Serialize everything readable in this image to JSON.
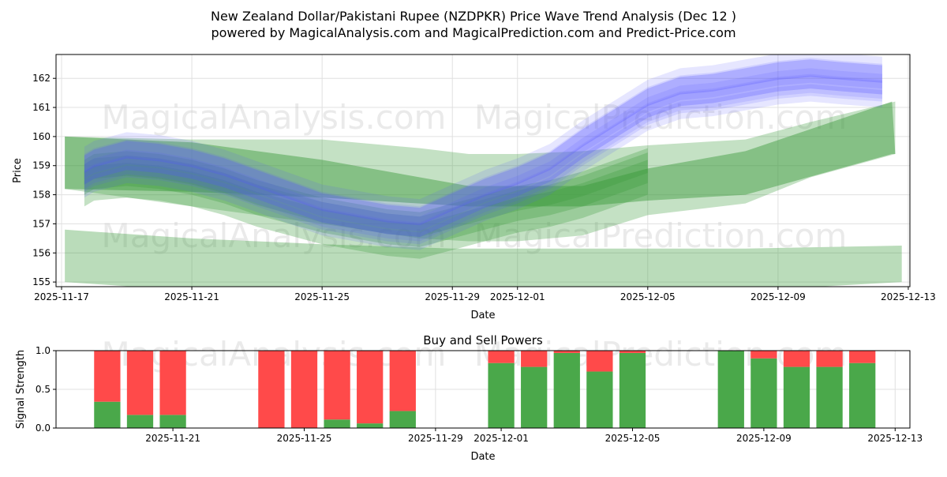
{
  "title_line1": "New Zealand Dollar/Pakistani Rupee (NZDPKR) Price Wave Trend Analysis (Dec 12 )",
  "title_line2": "powered by MagicalAnalysis.com and MagicalPrediction.com and Predict-Price.com",
  "watermarks": [
    "MagicalAnalysis.com",
    "MagicalPrediction.com"
  ],
  "chart_data": [
    {
      "type": "area",
      "title": "",
      "xlabel": "Date",
      "ylabel": "Price",
      "x_origin_date": "2025-11-17",
      "xlim_days": [
        -0.17,
        26.05
      ],
      "ylim": [
        154.84,
        162.82
      ],
      "grid": true,
      "yticks": [
        155,
        156,
        157,
        158,
        159,
        160,
        161,
        162
      ],
      "xticks": [
        {
          "day": 0,
          "label": "2025-11-17"
        },
        {
          "day": 4,
          "label": "2025-11-21"
        },
        {
          "day": 8,
          "label": "2025-11-25"
        },
        {
          "day": 12,
          "label": "2025-11-29"
        },
        {
          "day": 14,
          "label": "2025-12-01"
        },
        {
          "day": 18,
          "label": "2025-12-05"
        },
        {
          "day": 22,
          "label": "2025-12-09"
        },
        {
          "day": 26,
          "label": "2025-12-13"
        }
      ],
      "trend_x": [
        0.7,
        1,
        2,
        3,
        4,
        5,
        6,
        7,
        8,
        9,
        10,
        11,
        12,
        13,
        14,
        15,
        16,
        17,
        18,
        19,
        20,
        21,
        22,
        23,
        24,
        25.2
      ],
      "blue_trend": [
        158.7,
        158.9,
        159.2,
        159.1,
        158.9,
        158.6,
        158.2,
        157.8,
        157.4,
        157.2,
        157.0,
        156.9,
        157.4,
        157.9,
        158.3,
        158.8,
        159.6,
        160.3,
        161.0,
        161.4,
        161.5,
        161.7,
        161.9,
        162.0,
        161.9,
        161.8
      ],
      "green_trend": [
        158.7,
        158.9,
        159.0,
        158.9,
        158.7,
        158.4,
        158.0,
        157.7,
        157.4,
        157.2,
        157.0,
        156.9,
        157.2,
        157.5,
        157.8,
        158.0,
        158.3,
        158.7,
        159.1,
        159.5,
        159.8,
        160.2,
        160.6,
        160.9,
        161.1,
        161.3
      ],
      "blue_bands": [
        {
          "offset": 0.0,
          "half": 0.35
        },
        {
          "offset": 0.25,
          "half": 0.4
        },
        {
          "offset": -0.25,
          "half": 0.35
        },
        {
          "offset": 0.5,
          "half": 0.45
        },
        {
          "offset": -0.5,
          "half": 0.3
        },
        {
          "offset": 0.1,
          "half": 0.6
        },
        {
          "offset": -0.1,
          "half": 0.25
        },
        {
          "offset": 0.35,
          "half": 0.3
        }
      ],
      "green_bands": [
        {
          "offset": 0.0,
          "half": 0.35
        },
        {
          "offset": -0.3,
          "half": 0.4
        },
        {
          "offset": 0.2,
          "half": 0.3
        },
        {
          "offset": -0.6,
          "half": 0.5
        }
      ],
      "explicit_bands": [
        {
          "color": "green",
          "alpha": 0.3,
          "x": [
            0.1,
            4,
            8,
            11,
            12.5,
            14,
            16,
            18,
            21,
            23,
            25.6
          ],
          "upper": [
            160.0,
            159.9,
            159.9,
            159.6,
            159.4,
            159.4,
            159.5,
            159.7,
            159.9,
            160.5,
            161.2
          ],
          "lower": [
            158.2,
            157.6,
            157.0,
            156.5,
            156.4,
            156.4,
            156.6,
            157.3,
            157.7,
            158.6,
            159.4
          ]
        },
        {
          "color": "green",
          "alpha": 0.45,
          "x": [
            0.1,
            4,
            8,
            12.5,
            16,
            18,
            21,
            25.5,
            25.6
          ],
          "upper": [
            160.0,
            159.8,
            159.2,
            158.3,
            158.3,
            158.9,
            159.5,
            161.2,
            159.4
          ],
          "lower": [
            158.2,
            158.1,
            157.9,
            157.6,
            157.6,
            157.8,
            158.0,
            159.4,
            159.4
          ]
        },
        {
          "color": "green",
          "alpha": 0.35,
          "x": [
            0.1,
            4,
            8,
            12,
            16,
            18,
            21,
            25.8
          ],
          "upper": [
            156.8,
            156.5,
            156.3,
            156.15,
            156.15,
            156.15,
            156.15,
            156.25
          ],
          "lower": [
            155.0,
            154.7,
            154.7,
            154.7,
            154.7,
            154.7,
            154.7,
            155.0
          ]
        }
      ]
    },
    {
      "type": "bar",
      "title": "Buy and Sell Powers",
      "xlabel": "Date",
      "ylabel": "Signal Strength",
      "x_origin_date": "2025-11-17",
      "xlim_days": [
        0.44,
        26.45
      ],
      "ylim": [
        0,
        1
      ],
      "yticks": [
        "0.0",
        "0.5",
        "1.0"
      ],
      "xticks": [
        {
          "day": 4,
          "label": "2025-11-21"
        },
        {
          "day": 8,
          "label": "2025-11-25"
        },
        {
          "day": 12,
          "label": "2025-11-29"
        },
        {
          "day": 14,
          "label": "2025-12-01"
        },
        {
          "day": 18,
          "label": "2025-12-05"
        },
        {
          "day": 22,
          "label": "2025-12-09"
        },
        {
          "day": 26,
          "label": "2025-12-13"
        }
      ],
      "categories": [
        "2025-11-19",
        "2025-11-20",
        "2025-11-21",
        "2025-11-24",
        "2025-11-25",
        "2025-11-26",
        "2025-11-27",
        "2025-11-28",
        "2025-12-01",
        "2025-12-02",
        "2025-12-03",
        "2025-12-04",
        "2025-12-05",
        "2025-12-08",
        "2025-12-09",
        "2025-12-10",
        "2025-12-11",
        "2025-12-12"
      ],
      "days": [
        2,
        3,
        4,
        7,
        8,
        9,
        10,
        11,
        14,
        15,
        16,
        17,
        18,
        21,
        22,
        23,
        24,
        25
      ],
      "series": [
        {
          "name": "Buy",
          "color": "#4aa84a",
          "values": [
            0.34,
            0.17,
            0.17,
            0.0,
            0.0,
            0.11,
            0.06,
            0.22,
            0.84,
            0.79,
            0.97,
            0.73,
            0.97,
            1.0,
            0.9,
            0.79,
            0.79,
            0.84
          ]
        },
        {
          "name": "Sell",
          "color": "#ff4a4a",
          "values": [
            0.66,
            0.83,
            0.83,
            1.0,
            1.0,
            0.89,
            0.94,
            0.78,
            0.16,
            0.21,
            0.03,
            0.27,
            0.03,
            0.0,
            0.1,
            0.21,
            0.21,
            0.16
          ]
        }
      ]
    }
  ]
}
